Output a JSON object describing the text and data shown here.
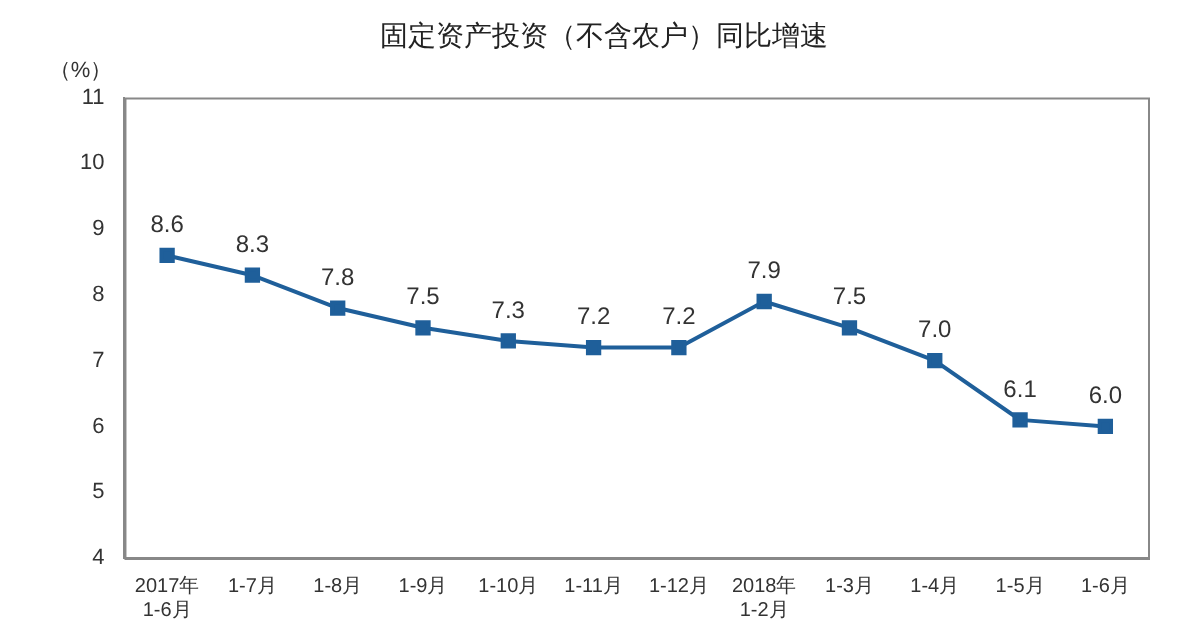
{
  "chart_data": {
    "type": "line",
    "title": "固定资产投资（不含农户）同比增速",
    "ylabel": "（%）",
    "categories": [
      "2017年\n1-6月",
      "1-7月",
      "1-8月",
      "1-9月",
      "1-10月",
      "1-11月",
      "1-12月",
      "2018年\n1-2月",
      "1-3月",
      "1-4月",
      "1-5月",
      "1-6月"
    ],
    "series": [
      {
        "color": "#1f5f9a",
        "values": [
          8.6,
          8.3,
          7.8,
          7.5,
          7.3,
          7.2,
          7.2,
          7.9,
          7.5,
          7.0,
          6.1,
          6.0
        ],
        "value_labels": [
          "8.6",
          "8.3",
          "7.8",
          "7.5",
          "7.3",
          "7.2",
          "7.2",
          "7.9",
          "7.5",
          "7.0",
          "6.1",
          "6.0"
        ]
      }
    ],
    "ylim": [
      4,
      11
    ],
    "yticks": [
      4,
      5,
      6,
      7,
      8,
      9,
      10,
      11
    ],
    "grid": false,
    "legend": false,
    "marker": "square",
    "line_style": "solid"
  }
}
